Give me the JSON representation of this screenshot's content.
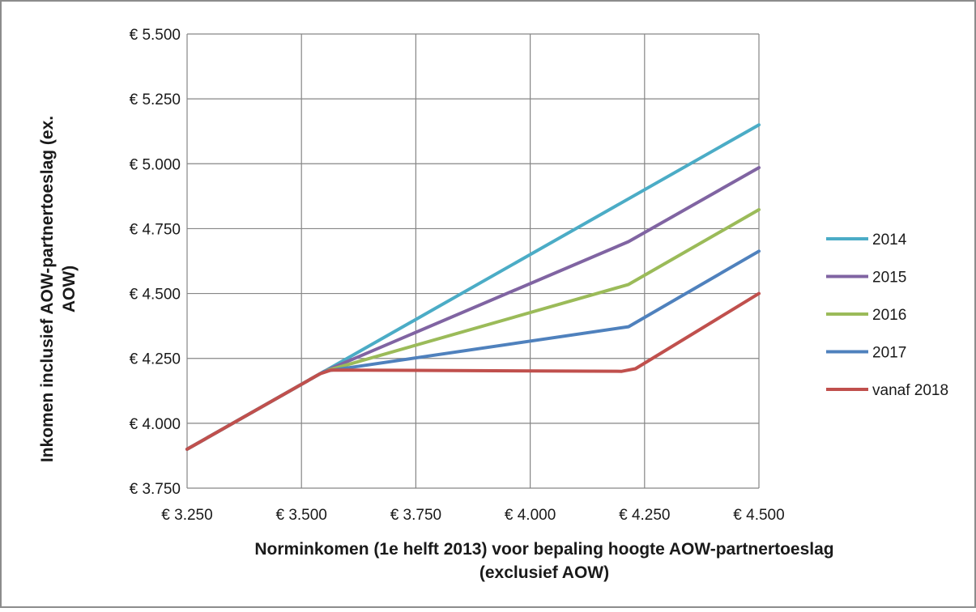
{
  "chart_data": {
    "type": "line",
    "title": "",
    "xlabel_lines": [
      "Norminkomen (1e helft 2013) voor bepaling hoogte AOW-partnertoeslag",
      "(exclusief AOW)"
    ],
    "ylabel_lines": [
      "Inkomen inclusief AOW-partnertoeslag (ex.",
      "AOW)"
    ],
    "xlim": [
      3250,
      4500
    ],
    "ylim": [
      3750,
      5500
    ],
    "x_ticks": [
      3250,
      3500,
      3750,
      4000,
      4250,
      4500
    ],
    "y_ticks": [
      3750,
      4000,
      4250,
      4500,
      4750,
      5000,
      5250,
      5500
    ],
    "x_tick_labels": [
      "€ 3.250",
      "€ 3.500",
      "€ 3.750",
      "€ 4.000",
      "€ 4.250",
      "€ 4.500"
    ],
    "y_tick_labels": [
      "€ 3.750",
      "€ 4.000",
      "€ 4.250",
      "€ 4.500",
      "€ 4.750",
      "€ 5.000",
      "€ 5.250",
      "€ 5.500"
    ],
    "grid": true,
    "legend_position": "right",
    "series": [
      {
        "name": "2014",
        "color": "#4bacc6",
        "points": [
          [
            3250,
            3900
          ],
          [
            3550,
            4200
          ],
          [
            4500,
            5150
          ]
        ]
      },
      {
        "name": "2015",
        "color": "#8064a2",
        "points": [
          [
            3250,
            3900
          ],
          [
            3550,
            4200
          ],
          [
            4215,
            4700
          ],
          [
            4500,
            4985
          ]
        ]
      },
      {
        "name": "2016",
        "color": "#9bbb59",
        "points": [
          [
            3250,
            3900
          ],
          [
            3550,
            4200
          ],
          [
            4215,
            4535
          ],
          [
            4500,
            4823
          ]
        ]
      },
      {
        "name": "2017",
        "color": "#4f81bd",
        "points": [
          [
            3250,
            3900
          ],
          [
            3550,
            4200
          ],
          [
            4215,
            4372
          ],
          [
            4500,
            4663
          ]
        ]
      },
      {
        "name": "vanaf 2018",
        "color": "#c0504d",
        "points": [
          [
            3250,
            3900
          ],
          [
            3540,
            4190
          ],
          [
            3565,
            4205
          ],
          [
            4200,
            4200
          ],
          [
            4230,
            4210
          ],
          [
            4500,
            4500
          ]
        ]
      }
    ]
  }
}
